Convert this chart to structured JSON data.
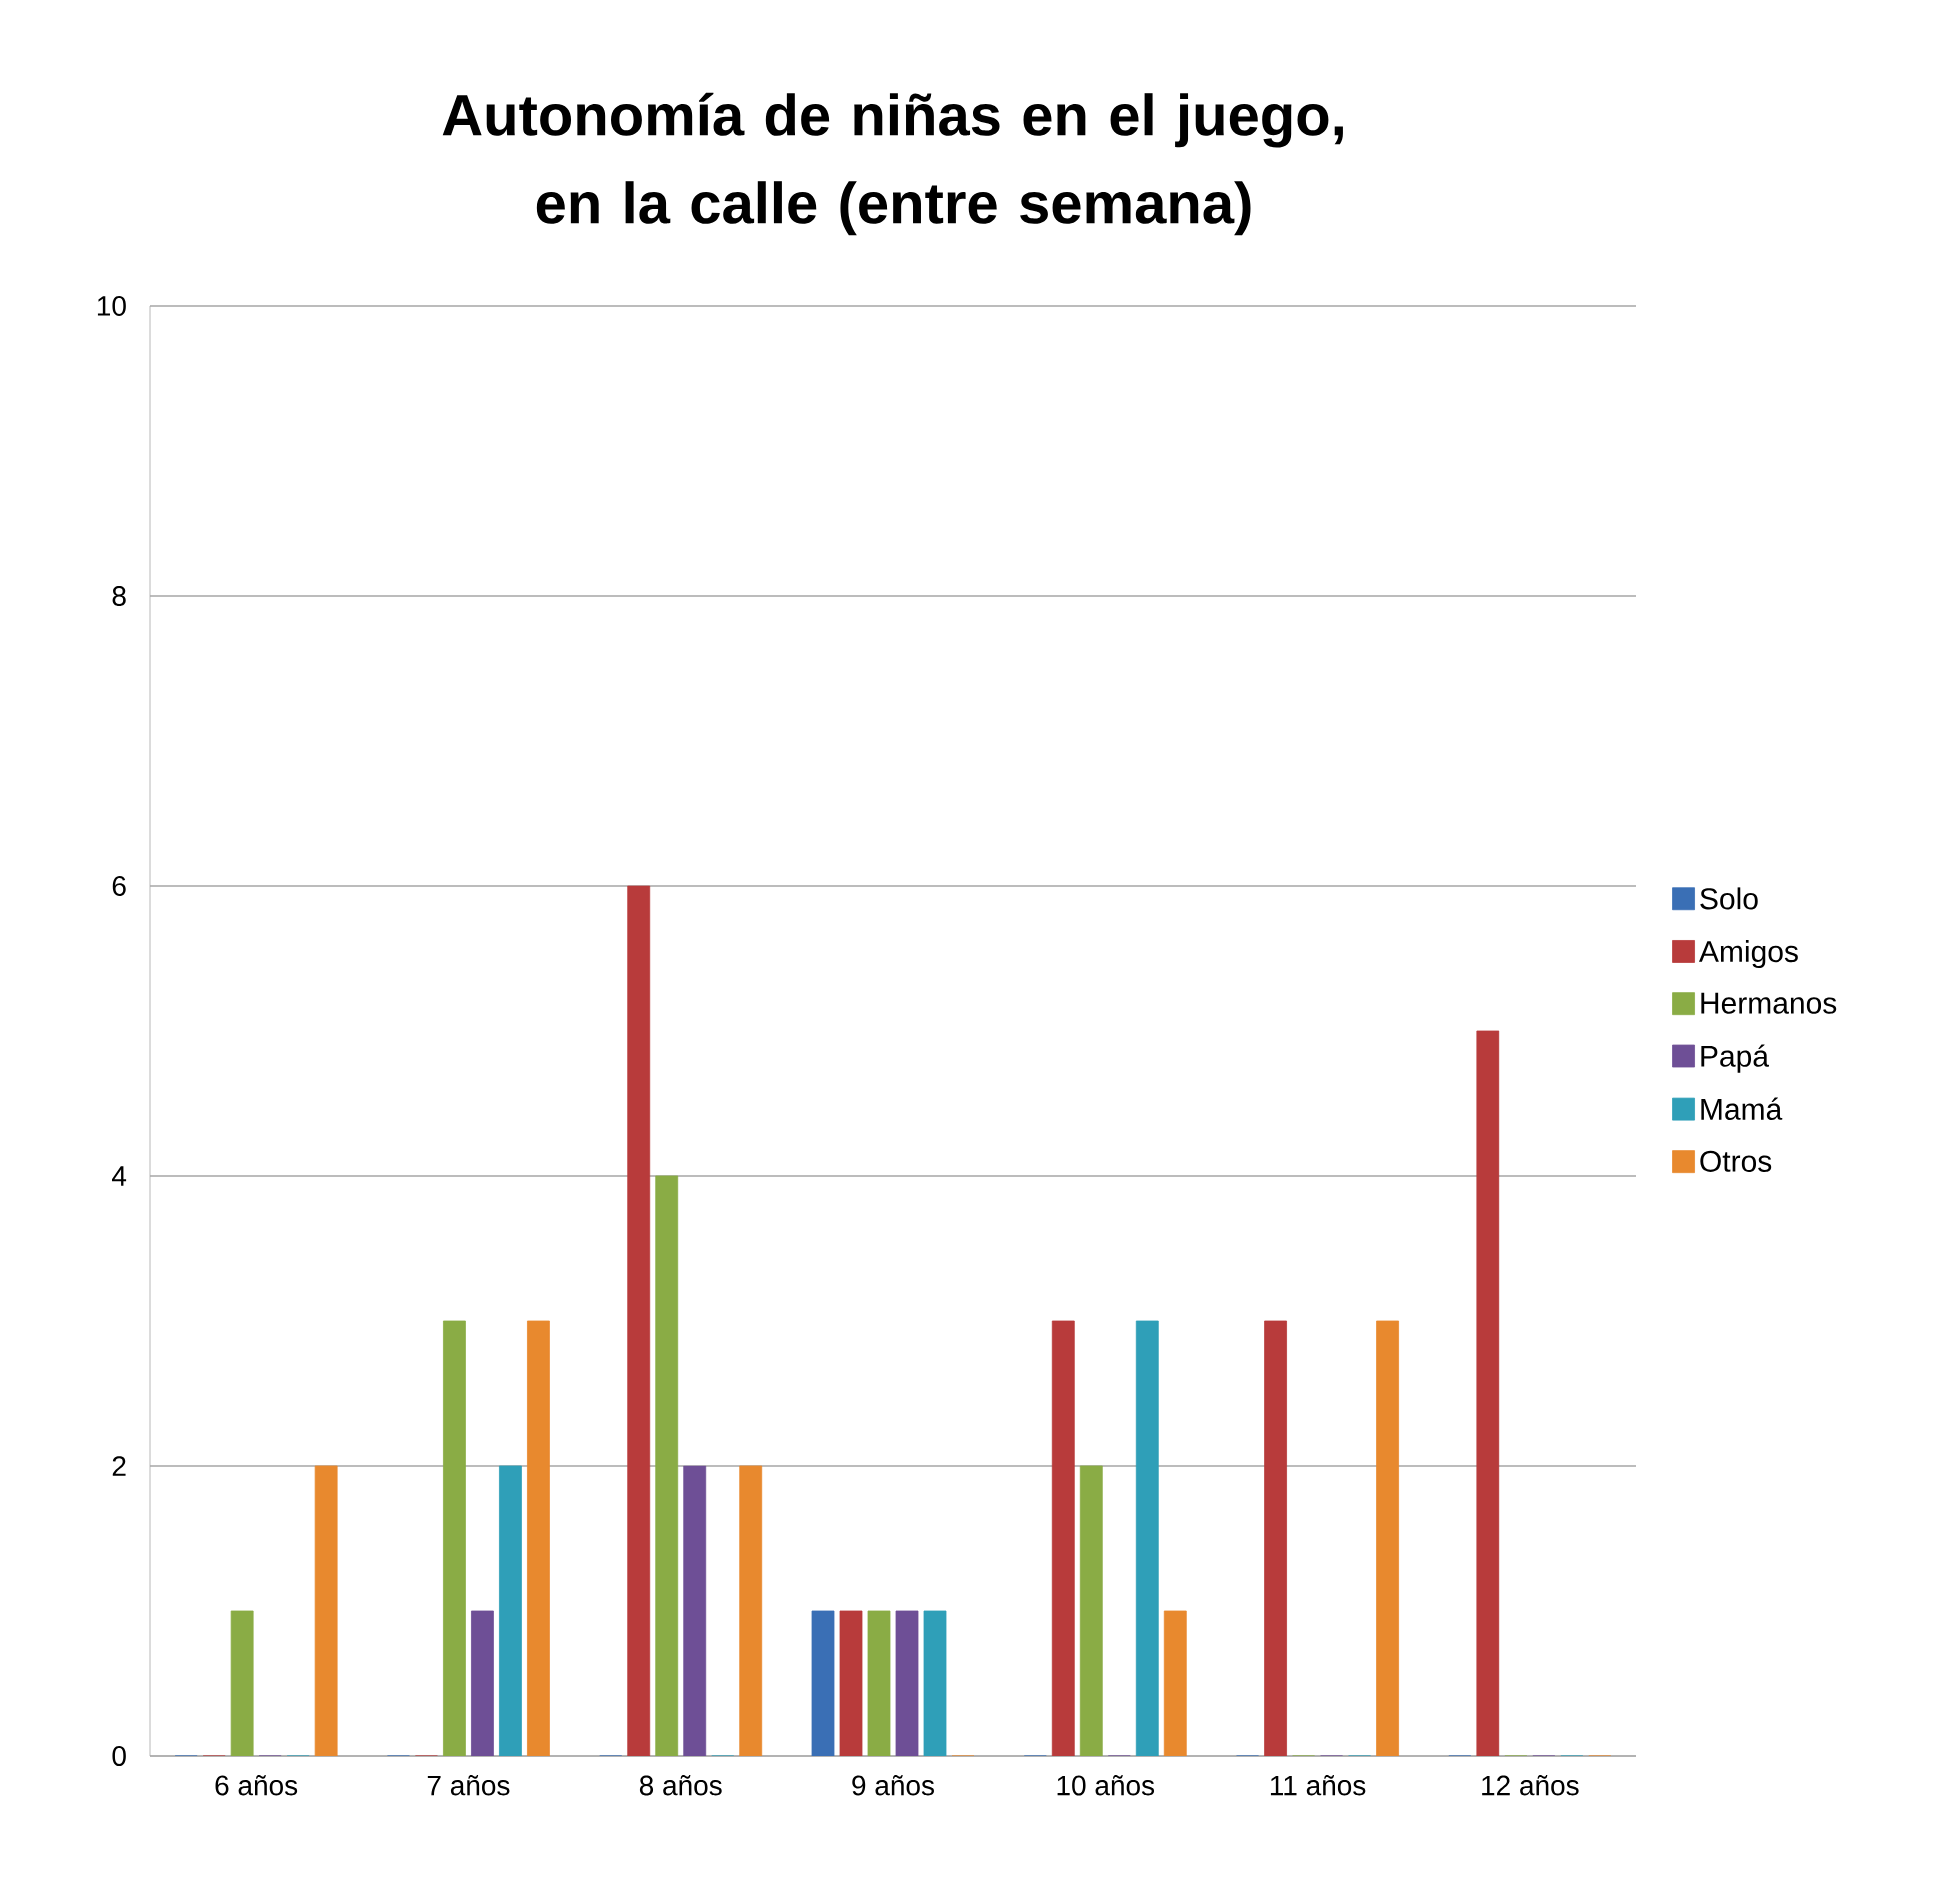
{
  "chart_data": {
    "type": "bar",
    "title": "Autonomía de niñas en el juego, en la calle (entre semana)",
    "categories": [
      "6 años",
      "7 años",
      "8 años",
      "9 años",
      "10 años",
      "11 años",
      "12 años"
    ],
    "series": [
      {
        "name": "Solo",
        "color": "#3a6fb5",
        "values": [
          0,
          0,
          0,
          1,
          0,
          0,
          0
        ]
      },
      {
        "name": "Amigos",
        "color": "#b83b3b",
        "values": [
          0,
          0,
          6,
          1,
          3,
          3,
          5
        ]
      },
      {
        "name": "Hermanos",
        "color": "#8aac45",
        "values": [
          1,
          3,
          4,
          1,
          2,
          0,
          0
        ]
      },
      {
        "name": "Papá",
        "color": "#6e4f96",
        "values": [
          0,
          1,
          2,
          1,
          0,
          0,
          0
        ]
      },
      {
        "name": "Mamá",
        "color": "#2f9fb8",
        "values": [
          0,
          2,
          0,
          1,
          3,
          0,
          0
        ]
      },
      {
        "name": "Otros",
        "color": "#e8892e",
        "values": [
          2,
          3,
          2,
          0,
          1,
          3,
          0
        ]
      }
    ],
    "ylim": [
      0,
      10
    ],
    "yticks": [
      0,
      2,
      4,
      6,
      8,
      10
    ],
    "grid": "y",
    "legend": "right"
  }
}
